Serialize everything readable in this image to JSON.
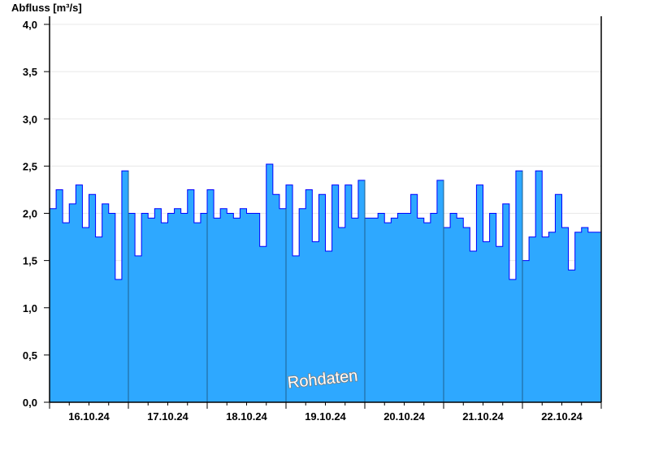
{
  "chart_data": {
    "type": "area",
    "title": "",
    "ylabel": "Abfluss [m³/s]",
    "xlabel": "",
    "ylim": [
      0,
      4.0
    ],
    "yticks": [
      "0,0",
      "0,5",
      "1,0",
      "1,5",
      "2,0",
      "2,5",
      "3,0",
      "3,5",
      "4,0"
    ],
    "ytick_values": [
      0,
      0.5,
      1.0,
      1.5,
      2.0,
      2.5,
      3.0,
      3.5,
      4.0
    ],
    "xticks": [
      "16.10.24",
      "17.10.24",
      "18.10.24",
      "19.10.24",
      "20.10.24",
      "21.10.24",
      "22.10.24"
    ],
    "x_start": "16.10.24 00:00",
    "x_end": "23.10.24 00:00",
    "sampling_hours": 2,
    "grid": true,
    "annotation": "Rohdaten",
    "colors": {
      "fill": "#2ea8ff",
      "line": "#0000ff",
      "day_separator": "#1f5f8f",
      "grid": "#e8e8e8"
    },
    "series": [
      {
        "values": [
          2.05,
          2.25,
          1.9,
          2.1,
          2.3,
          1.85,
          2.2,
          1.75,
          2.1,
          2.0,
          1.3,
          2.45,
          2.0,
          1.55,
          2.0,
          1.95,
          2.05,
          1.9,
          2.0,
          2.05,
          2.0,
          2.25,
          1.9,
          2.0,
          2.25,
          1.95,
          2.05,
          2.0,
          1.95,
          2.05,
          2.0,
          2.0,
          1.65,
          2.52,
          2.2,
          2.05,
          2.3,
          1.55,
          2.05,
          2.25,
          1.7,
          2.2,
          1.6,
          2.3,
          1.85,
          2.3,
          1.95,
          2.35,
          1.95,
          1.95,
          2.0,
          1.9,
          1.95,
          2.0,
          2.0,
          2.2,
          1.95,
          1.9,
          2.0,
          2.35,
          1.85,
          2.0,
          1.95,
          1.85,
          1.6,
          2.3,
          1.7,
          2.0,
          1.65,
          2.1,
          1.3,
          2.45,
          1.5,
          1.75,
          2.45,
          1.75,
          1.8,
          2.2,
          1.85,
          1.4,
          1.8,
          1.85,
          1.8,
          1.8
        ]
      }
    ]
  }
}
